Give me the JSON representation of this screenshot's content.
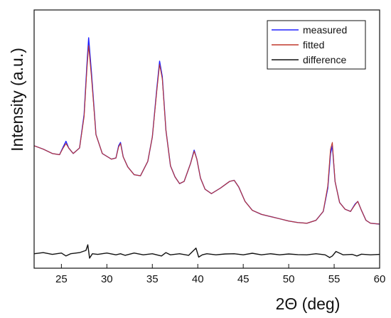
{
  "chart_data": {
    "type": "line",
    "title": "",
    "xlabel": "2Θ (deg)",
    "ylabel": "Intensity (a.u.)",
    "xlim": [
      22,
      60
    ],
    "ylim": [
      -1.6,
      10
    ],
    "x_ticks": [
      25,
      30,
      35,
      40,
      45,
      50,
      55,
      60
    ],
    "x_tick_labels": [
      "25",
      "30",
      "35",
      "40",
      "45",
      "50",
      "55",
      "60"
    ],
    "y_ticks_visible": false,
    "grid": false,
    "legend": {
      "placement": "top-right",
      "framed": true
    },
    "series": [
      {
        "name": "measured",
        "color": "#2020ff",
        "x": [
          22,
          23,
          24,
          24.8,
          25.2,
          25.5,
          25.8,
          26.3,
          27.0,
          27.5,
          27.8,
          28.0,
          28.3,
          28.8,
          29.5,
          30.5,
          31.0,
          31.3,
          31.5,
          31.8,
          32.3,
          33.0,
          33.7,
          34.5,
          35.0,
          35.5,
          35.8,
          36.1,
          36.5,
          37.0,
          37.5,
          38.0,
          38.5,
          39.2,
          39.6,
          39.9,
          40.3,
          40.8,
          41.5,
          42.5,
          43.5,
          44.0,
          44.5,
          45.2,
          46.0,
          47.0,
          48.0,
          49.0,
          50.0,
          51.0,
          52.0,
          53.0,
          53.8,
          54.3,
          54.6,
          54.8,
          55.1,
          55.6,
          56.2,
          56.8,
          57.3,
          57.6,
          58.0,
          58.5,
          59.0,
          60.0
        ],
        "values": [
          3.9,
          3.75,
          3.55,
          3.5,
          3.85,
          4.1,
          3.8,
          3.55,
          3.8,
          5.3,
          7.5,
          8.75,
          7.2,
          4.4,
          3.55,
          3.3,
          3.35,
          3.9,
          4.05,
          3.4,
          2.95,
          2.6,
          2.55,
          3.2,
          4.3,
          6.5,
          7.7,
          7.0,
          4.6,
          3.0,
          2.5,
          2.2,
          2.3,
          3.1,
          3.7,
          3.3,
          2.45,
          1.95,
          1.75,
          2.0,
          2.3,
          2.35,
          2.05,
          1.4,
          1.0,
          0.82,
          0.72,
          0.62,
          0.52,
          0.45,
          0.42,
          0.55,
          0.95,
          2.0,
          3.55,
          3.9,
          2.3,
          1.35,
          1.05,
          0.95,
          1.28,
          1.4,
          1.0,
          0.55,
          0.42,
          0.38
        ]
      },
      {
        "name": "fitted",
        "color": "#c0392b",
        "x": [
          22,
          23,
          24,
          24.8,
          25.2,
          25.5,
          25.8,
          26.3,
          27.0,
          27.5,
          27.8,
          28.0,
          28.3,
          28.8,
          29.5,
          30.5,
          31.0,
          31.3,
          31.5,
          31.8,
          32.3,
          33.0,
          33.7,
          34.5,
          35.0,
          35.5,
          35.8,
          36.1,
          36.5,
          37.0,
          37.5,
          38.0,
          38.5,
          39.2,
          39.6,
          39.9,
          40.3,
          40.8,
          41.5,
          42.5,
          43.5,
          44.0,
          44.5,
          45.2,
          46.0,
          47.0,
          48.0,
          49.0,
          50.0,
          51.0,
          52.0,
          53.0,
          53.8,
          54.3,
          54.6,
          54.8,
          55.1,
          55.6,
          56.2,
          56.8,
          57.3,
          57.6,
          58.0,
          58.5,
          59.0,
          60.0
        ],
        "values": [
          3.9,
          3.75,
          3.55,
          3.5,
          3.8,
          4.0,
          3.8,
          3.55,
          3.8,
          5.2,
          7.3,
          8.4,
          7.0,
          4.4,
          3.55,
          3.3,
          3.35,
          3.85,
          4.0,
          3.4,
          2.95,
          2.6,
          2.55,
          3.2,
          4.3,
          6.4,
          7.55,
          6.9,
          4.6,
          3.0,
          2.5,
          2.2,
          2.3,
          3.1,
          3.65,
          3.3,
          2.45,
          1.95,
          1.75,
          2.0,
          2.3,
          2.35,
          2.05,
          1.4,
          1.0,
          0.82,
          0.72,
          0.62,
          0.52,
          0.45,
          0.42,
          0.55,
          0.95,
          2.1,
          3.75,
          4.05,
          2.3,
          1.35,
          1.05,
          0.95,
          1.25,
          1.4,
          1.0,
          0.55,
          0.42,
          0.38
        ]
      },
      {
        "name": "difference",
        "color": "#111111",
        "x": [
          22,
          23,
          24,
          25,
          25.5,
          26,
          27,
          27.7,
          27.9,
          28.1,
          28.4,
          29,
          30,
          31,
          31.5,
          32,
          33,
          34,
          35,
          36,
          36.5,
          37,
          38,
          39,
          39.8,
          40.1,
          40.5,
          41,
          42,
          43,
          44,
          45,
          46,
          47,
          48,
          49,
          50,
          51,
          52,
          53,
          54,
          54.5,
          54.8,
          55.2,
          56,
          57,
          57.5,
          58,
          59,
          60
        ],
        "values": [
          -0.95,
          -0.9,
          -0.98,
          -0.92,
          -1.05,
          -0.95,
          -0.9,
          -0.8,
          -0.55,
          -1.15,
          -0.95,
          -0.98,
          -0.92,
          -1.0,
          -0.95,
          -1.02,
          -0.92,
          -1.0,
          -0.95,
          -1.05,
          -0.9,
          -1.0,
          -0.95,
          -1.02,
          -0.7,
          -1.1,
          -1.0,
          -0.95,
          -1.0,
          -0.96,
          -0.95,
          -1.0,
          -0.93,
          -1.0,
          -0.95,
          -1.0,
          -0.96,
          -0.99,
          -1.0,
          -0.95,
          -1.0,
          -1.12,
          -1.05,
          -0.85,
          -1.0,
          -0.98,
          -1.05,
          -0.97,
          -1.0,
          -0.98
        ]
      }
    ]
  }
}
